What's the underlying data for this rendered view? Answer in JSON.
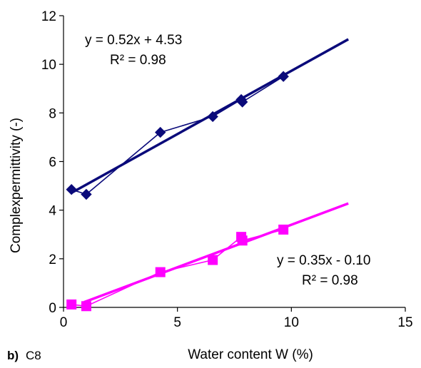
{
  "chart_data": {
    "type": "scatter",
    "panel_label": "b)",
    "panel_name": "C8",
    "xlabel": "Water content W (%)",
    "ylabel": "Complexpermittivity (-)",
    "xlim": [
      0,
      15
    ],
    "ylim": [
      0,
      12
    ],
    "xticks": [
      0,
      5,
      10,
      15
    ],
    "yticks": [
      0,
      2,
      4,
      6,
      8,
      10,
      12
    ],
    "grid": false,
    "series": [
      {
        "color": "#0a0a7a",
        "marker": "diamond",
        "x": [
          0.35,
          1.0,
          4.25,
          6.55,
          7.8,
          7.85,
          9.65
        ],
        "y": [
          4.85,
          4.65,
          7.2,
          7.85,
          8.55,
          8.45,
          9.5
        ],
        "trendline": {
          "x": [
            0.35,
            12.5
          ],
          "slope": 0.52,
          "intercept": 4.53
        },
        "equation": "y = 0.52x + 4.53",
        "r2": "R² = 0.98"
      },
      {
        "color": "#ff00ff",
        "marker": "square",
        "x": [
          0.35,
          1.0,
          4.25,
          6.55,
          7.8,
          7.85,
          9.65
        ],
        "y": [
          0.12,
          0.05,
          1.45,
          1.95,
          2.9,
          2.75,
          3.2
        ],
        "trendline": {
          "x": [
            0.9,
            12.5
          ],
          "slope": 0.35,
          "intercept": -0.1
        },
        "equation": "y = 0.35x - 0.10",
        "r2": "R² = 0.98"
      }
    ]
  }
}
